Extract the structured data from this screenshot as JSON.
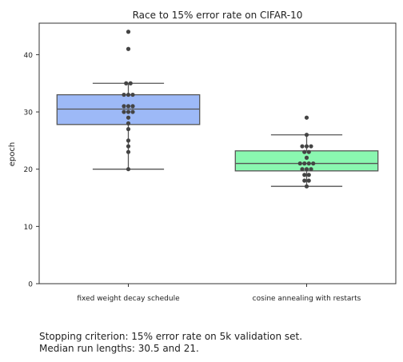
{
  "chart_data": {
    "type": "box",
    "title": "Race to 15% error rate on CIFAR-10",
    "xlabel": "",
    "ylabel": "epoch",
    "ylim": [
      0,
      45.5
    ],
    "yticks": [
      0,
      10,
      20,
      30,
      40
    ],
    "grid": false,
    "categories": [
      "fixed weight decay schedule",
      "cosine annealing with restarts"
    ],
    "colors": [
      "#9db9f7",
      "#8af7b0"
    ],
    "boxes": [
      {
        "name": "fixed weight decay schedule",
        "q1": 27.8,
        "median": 30.5,
        "q3": 33,
        "whisker_low": 20,
        "whisker_high": 35,
        "points": [
          44,
          41,
          35,
          35,
          33,
          33,
          33,
          31,
          31,
          31,
          30,
          30,
          30,
          29,
          28,
          27,
          25,
          24,
          23,
          20
        ]
      },
      {
        "name": "cosine annealing with restarts",
        "q1": 19.7,
        "median": 21,
        "q3": 23.2,
        "whisker_low": 17,
        "whisker_high": 26,
        "points": [
          29,
          26,
          24,
          24,
          24,
          23,
          23,
          22,
          21,
          21,
          21,
          21,
          20,
          20,
          20,
          19,
          19,
          18,
          18,
          17
        ]
      }
    ]
  },
  "caption": {
    "line1": "Stopping criterion: 15% error rate on 5k validation set.",
    "line2": "Median run lengths: 30.5 and 21."
  }
}
